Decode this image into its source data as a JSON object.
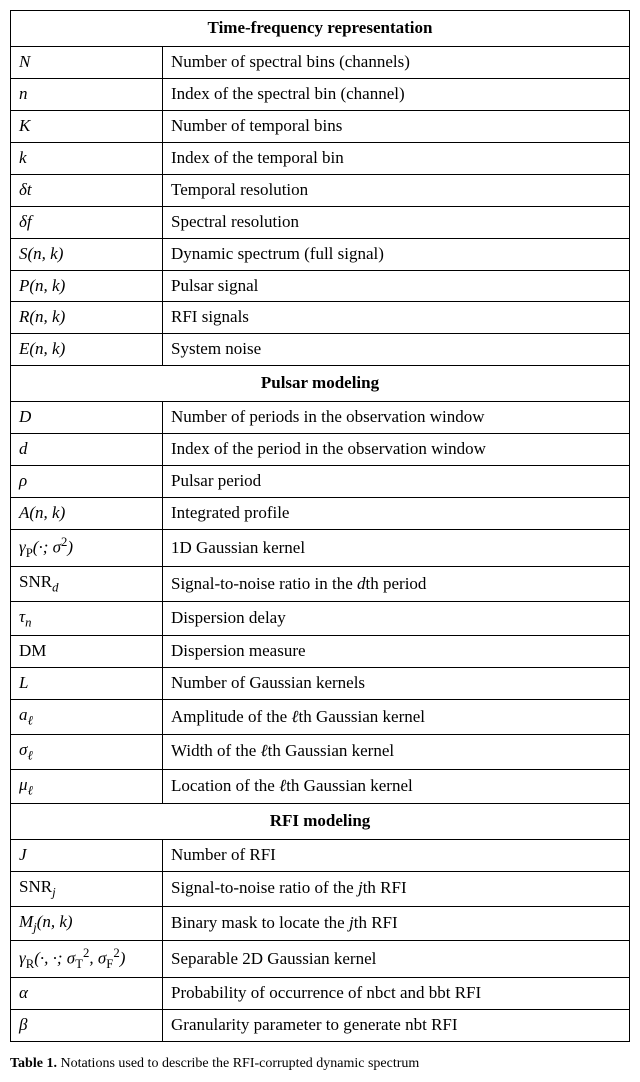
{
  "sections": [
    {
      "header": "Time-frequency representation",
      "rows": [
        {
          "symbol": "N",
          "desc": "Number of spectral bins (channels)"
        },
        {
          "symbol": "n",
          "desc": "Index of the spectral bin (channel)"
        },
        {
          "symbol": "K",
          "desc": "Number of temporal bins"
        },
        {
          "symbol": "k",
          "desc": "Index of the temporal bin"
        },
        {
          "symbol": "δt",
          "desc": "Temporal resolution"
        },
        {
          "symbol": "δf",
          "desc": "Spectral resolution"
        },
        {
          "symbol": "S(n, k)",
          "desc": "Dynamic spectrum (full signal)"
        },
        {
          "symbol": "P(n, k)",
          "desc": "Pulsar signal"
        },
        {
          "symbol": "R(n, k)",
          "desc": "RFI signals"
        },
        {
          "symbol": "E(n, k)",
          "desc": "System noise"
        }
      ]
    },
    {
      "header": "Pulsar modeling",
      "rows": [
        {
          "symbol": "D",
          "desc": "Number of periods in the observation window"
        },
        {
          "symbol": "d",
          "desc": "Index of the period in the observation window"
        },
        {
          "symbol": "ρ",
          "desc": "Pulsar period"
        },
        {
          "symbol": "A(n, k)",
          "desc": "Integrated profile"
        },
        {
          "symbol_html": "γ<sub><span class=\"rm\">P</span></sub>(·; σ<sup><span class=\"rm\">2</span></sup>)",
          "desc": "1D Gaussian kernel"
        },
        {
          "symbol_html": "<span class=\"rm\">SNR</span><sub>d</sub>",
          "desc_html": "Signal-to-noise ratio in the <span class=\"it\">d</span>th period"
        },
        {
          "symbol_html": "τ<sub>n</sub>",
          "desc": "Dispersion delay"
        },
        {
          "symbol_html": "<span class=\"rm\">DM</span>",
          "desc": "Dispersion measure"
        },
        {
          "symbol": "L",
          "desc": "Number of Gaussian kernels"
        },
        {
          "symbol_html": "a<sub>ℓ</sub>",
          "desc_html": "Amplitude of the <span class=\"it\">ℓ</span>th Gaussian kernel"
        },
        {
          "symbol_html": "σ<sub>ℓ</sub>",
          "desc_html": "Width of the <span class=\"it\">ℓ</span>th Gaussian kernel"
        },
        {
          "symbol_html": "μ<sub>ℓ</sub>",
          "desc_html": "Location of the <span class=\"it\">ℓ</span>th Gaussian kernel"
        }
      ]
    },
    {
      "header": "RFI modeling",
      "rows": [
        {
          "symbol": "J",
          "desc": "Number of RFI"
        },
        {
          "symbol_html": "<span class=\"rm\">SNR</span><sub>j</sub>",
          "desc_html": "Signal-to-noise ratio of the <span class=\"it\">j</span>th RFI"
        },
        {
          "symbol_html": "M<sub>j</sub>(n, k)",
          "desc_html": "Binary mask to locate the <span class=\"it\">j</span>th RFI"
        },
        {
          "symbol_html": "γ<sub><span class=\"rm\">R</span></sub>(·, ·; σ<sub><span class=\"rm\">T</span></sub><sup><span class=\"rm\">2</span></sup>, σ<sub><span class=\"rm\">F</span></sub><sup><span class=\"rm\">2</span></sup>)",
          "desc": "Separable 2D Gaussian kernel"
        },
        {
          "symbol": "α",
          "desc": "Probability of occurrence of nbct and bbt RFI"
        },
        {
          "symbol": "β",
          "desc": "Granularity parameter to generate nbt RFI"
        }
      ]
    }
  ],
  "caption_prefix": "Table 1.",
  "caption_rest": " Notations used to describe the RFI-corrupted dynamic spectrum"
}
